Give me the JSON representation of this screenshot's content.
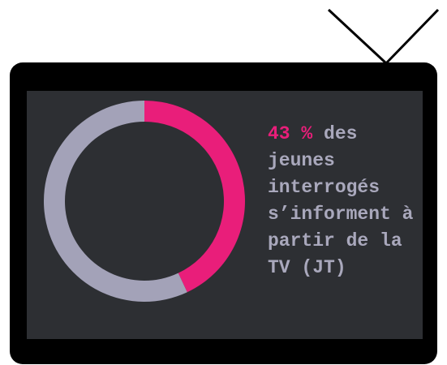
{
  "chart_data": {
    "type": "pie",
    "donut": true,
    "values": [
      43,
      57
    ],
    "value_labels": [
      "43 %",
      null
    ],
    "colors": [
      "#e91e7a",
      "#a3a2b8"
    ],
    "annotation": "des jeunes interrogés s’informent à partir de la TV (JT)"
  }
}
